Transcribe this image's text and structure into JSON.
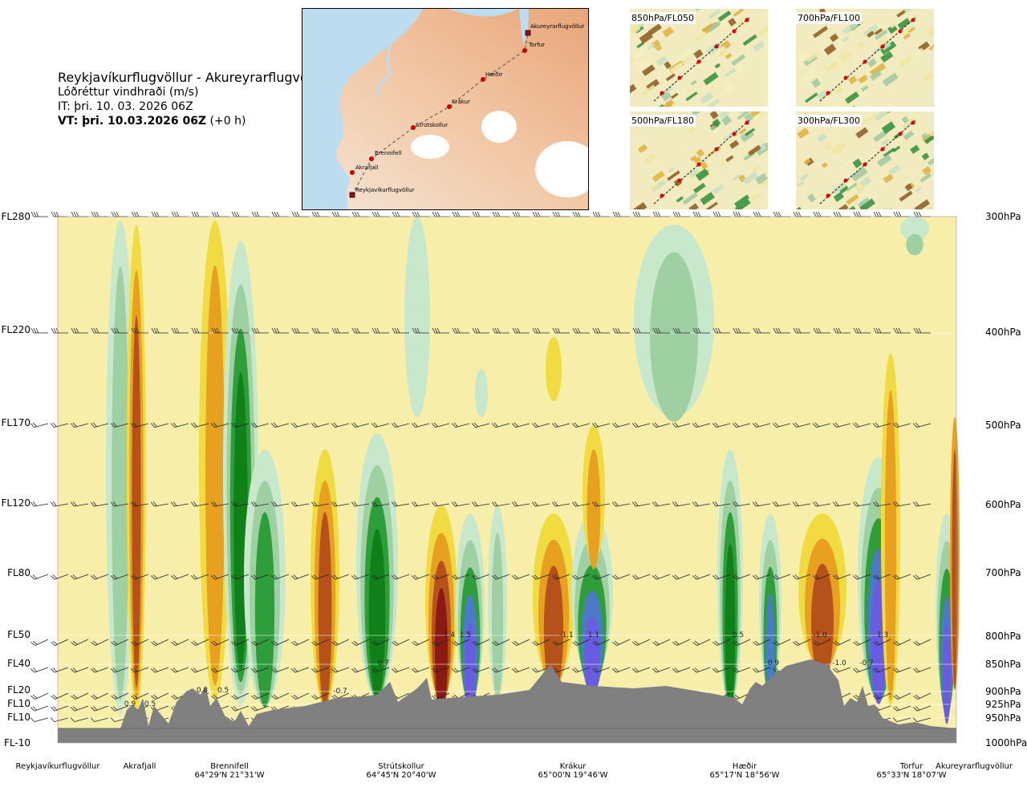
{
  "header": {
    "title": "Reykjavíkurflugvöllur - Akureyrarflugvöllur",
    "subtitle": "Lóðréttur vindhraði (m/s)",
    "issue_time": "IT: þri. 10. 03. 2026 06Z",
    "valid_time_bold": "VT: þri. 10.03.2026 06Z",
    "valid_time_offset": "(+0 h)"
  },
  "map": {
    "labels": [
      "Akureyrarflugvöllur",
      "Torfur",
      "Hæðir",
      "Krákur",
      "Strútskollur",
      "Brennifell",
      "Akrafjall",
      "Reykjavíkurflugvöllur"
    ]
  },
  "insets": [
    {
      "label": "850hPa/FL050"
    },
    {
      "label": "700hPa/FL100"
    },
    {
      "label": "500hPa/FL180"
    },
    {
      "label": "300hPa/FL300"
    }
  ],
  "chart_data": {
    "type": "heatmap",
    "variable": "vertical wind speed (m/s)",
    "left_axis": [
      "FL280",
      "FL220",
      "FL170",
      "FL120",
      "FL80",
      "FL50",
      "FL40",
      "FL20",
      "FL10",
      "FL10",
      "FL-10"
    ],
    "right_axis": [
      "300hPa",
      "400hPa",
      "500hPa",
      "600hPa",
      "700hPa",
      "800hPa",
      "850hPa",
      "900hPa",
      "925hPa",
      "950hPa",
      "1000hPa"
    ],
    "stations": [
      {
        "name": "Reykjavíkurflugvöllur",
        "coord": ""
      },
      {
        "name": "Akrafjall",
        "coord": ""
      },
      {
        "name": "Brennifell",
        "coord": "64°29'N 21°31'W"
      },
      {
        "name": "Strútskollur",
        "coord": "64°45'N 20°40'W"
      },
      {
        "name": "Krákur",
        "coord": "65°00'N 19°46'W"
      },
      {
        "name": "Hæðir",
        "coord": "65°17'N 18°56'W"
      },
      {
        "name": "Torfur",
        "coord": "65°33'N 18°07'W"
      },
      {
        "name": "Akureyrarflugvöllur",
        "coord": ""
      }
    ],
    "value_labels": [
      "0.9",
      "0.5",
      "0.8",
      "0.5",
      "-0.7",
      "0.7",
      "1.4",
      "1.5",
      "-1.1",
      "1.1",
      "0.5",
      "0.9",
      "-1.0",
      "-1.0",
      "-0.7",
      "1.3"
    ],
    "colors": {
      "strong_down": "#8b1a14",
      "down3": "#b5521c",
      "down2": "#e8a020",
      "down1": "#f0dc40",
      "weak": "#f7eeaa",
      "up1": "#c8e8cc",
      "up2": "#9fd0a2",
      "up3": "#2e9e3a",
      "up4": "#108018",
      "strong_up": "#4a7ac8",
      "strongest_up": "#6a5ce0",
      "terrain": "#808080"
    }
  }
}
